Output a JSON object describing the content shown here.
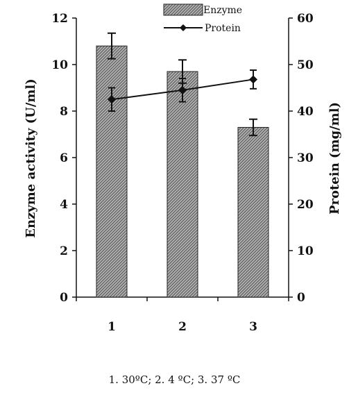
{
  "chart_data": {
    "type": "bar",
    "categories": [
      "1",
      "2",
      "3"
    ],
    "series": [
      {
        "name": "Enzyme",
        "kind": "bar",
        "axis": "left",
        "values": [
          10.8,
          9.7,
          7.3
        ],
        "errors": [
          0.55,
          0.5,
          0.35
        ]
      },
      {
        "name": "Protein",
        "kind": "line",
        "axis": "right",
        "values": [
          42.5,
          44.5,
          46.8
        ],
        "errors": [
          2.5,
          2.5,
          2.0
        ]
      }
    ],
    "ylabel": "Enzyme activity (U/ml)",
    "y2label": "Protein (mg/ml)",
    "ylim": [
      0,
      12
    ],
    "y2lim": [
      0,
      60
    ],
    "yticks": [
      0,
      2,
      4,
      6,
      8,
      10,
      12
    ],
    "y2ticks": [
      0,
      10,
      20,
      30,
      40,
      50,
      60
    ],
    "grid": false,
    "legend": "top-right",
    "colors": {
      "bar_fill": "#8a8a8a",
      "bar_stroke": "#222222",
      "line": "#111111"
    }
  },
  "caption": "1. 30ºC; 2. 4 ºC; 3. 37 ºC"
}
